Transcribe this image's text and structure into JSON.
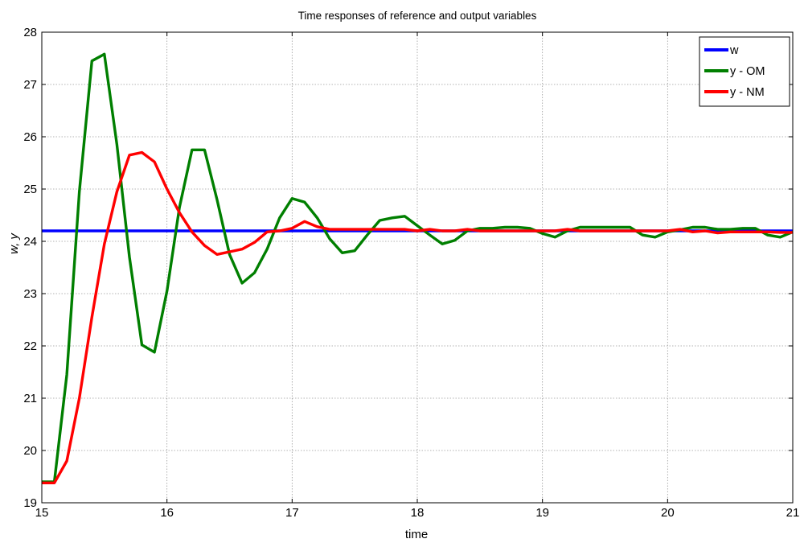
{
  "chart_data": {
    "type": "line",
    "title": "Time responses of reference and output variables",
    "xlabel": "time",
    "ylabel": "w, y",
    "xlim": [
      15,
      21
    ],
    "ylim": [
      19,
      28
    ],
    "xticks": [
      "15",
      "16",
      "17",
      "18",
      "19",
      "20",
      "21"
    ],
    "yticks": [
      "19",
      "20",
      "21",
      "22",
      "23",
      "24",
      "25",
      "26",
      "27",
      "28"
    ],
    "grid": true,
    "legend_position": "top-right",
    "series": [
      {
        "name": "w",
        "color": "#0000ff",
        "x": [
          15.0,
          21.0
        ],
        "y": [
          24.2,
          24.2
        ]
      },
      {
        "name": "y - OM",
        "color": "#007f00",
        "x": [
          15.0,
          15.1,
          15.2,
          15.3,
          15.4,
          15.5,
          15.6,
          15.7,
          15.8,
          15.9,
          16.0,
          16.1,
          16.2,
          16.3,
          16.4,
          16.5,
          16.6,
          16.7,
          16.8,
          16.9,
          17.0,
          17.1,
          17.2,
          17.3,
          17.4,
          17.5,
          17.6,
          17.7,
          17.8,
          17.9,
          18.0,
          18.1,
          18.2,
          18.3,
          18.4,
          18.5,
          18.6,
          18.7,
          18.8,
          18.9,
          19.0,
          19.1,
          19.2,
          19.3,
          19.4,
          19.5,
          19.6,
          19.7,
          19.8,
          19.9,
          20.0,
          20.1,
          20.2,
          20.3,
          20.4,
          20.5,
          20.6,
          20.7,
          20.8,
          20.9,
          21.0
        ],
        "y": [
          19.4,
          19.4,
          21.45,
          24.95,
          27.45,
          27.58,
          25.85,
          23.7,
          22.02,
          21.88,
          23.05,
          24.65,
          25.75,
          25.75,
          24.8,
          23.75,
          23.2,
          23.4,
          23.85,
          24.45,
          24.82,
          24.75,
          24.45,
          24.05,
          23.78,
          23.82,
          24.12,
          24.4,
          24.45,
          24.48,
          24.3,
          24.12,
          23.95,
          24.02,
          24.2,
          24.25,
          24.25,
          24.27,
          24.27,
          24.25,
          24.15,
          24.08,
          24.2,
          24.27,
          24.27,
          24.27,
          24.27,
          24.27,
          24.12,
          24.08,
          24.18,
          24.22,
          24.27,
          24.27,
          24.23,
          24.23,
          24.25,
          24.25,
          24.12,
          24.08,
          24.18
        ]
      },
      {
        "name": "y - NM",
        "color": "#ff0000",
        "x": [
          15.0,
          15.1,
          15.2,
          15.3,
          15.4,
          15.5,
          15.6,
          15.7,
          15.8,
          15.9,
          16.0,
          16.1,
          16.2,
          16.3,
          16.4,
          16.5,
          16.6,
          16.7,
          16.8,
          16.9,
          17.0,
          17.1,
          17.2,
          17.3,
          17.4,
          17.5,
          17.6,
          17.7,
          17.8,
          17.9,
          18.0,
          18.1,
          18.2,
          18.3,
          18.4,
          18.5,
          18.6,
          18.7,
          18.8,
          18.9,
          19.0,
          19.1,
          19.2,
          19.3,
          19.4,
          19.5,
          19.6,
          19.7,
          19.8,
          19.9,
          20.0,
          20.1,
          20.2,
          20.3,
          20.4,
          20.5,
          20.6,
          20.7,
          20.8,
          20.9,
          21.0
        ],
        "y": [
          19.38,
          19.38,
          19.8,
          21.0,
          22.55,
          23.95,
          24.95,
          25.65,
          25.7,
          25.52,
          25.0,
          24.55,
          24.18,
          23.92,
          23.75,
          23.8,
          23.85,
          23.98,
          24.18,
          24.2,
          24.25,
          24.38,
          24.28,
          24.23,
          24.23,
          24.23,
          24.23,
          24.23,
          24.23,
          24.23,
          24.2,
          24.23,
          24.2,
          24.2,
          24.23,
          24.2,
          24.2,
          24.2,
          24.2,
          24.2,
          24.2,
          24.2,
          24.23,
          24.2,
          24.2,
          24.2,
          24.2,
          24.2,
          24.2,
          24.2,
          24.2,
          24.23,
          24.18,
          24.2,
          24.16,
          24.18,
          24.18,
          24.18,
          24.18,
          24.17,
          24.17
        ]
      }
    ]
  }
}
